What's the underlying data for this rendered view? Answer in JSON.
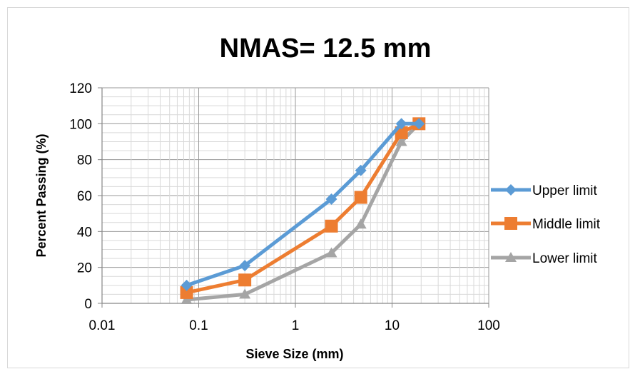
{
  "chart_data": {
    "type": "line",
    "title": "NMAS= 12.5 mm",
    "xlabel": "Sieve Size (mm)",
    "ylabel": "Percent Passing (%)",
    "x_scale": "log",
    "xlim": [
      0.01,
      100
    ],
    "ylim": [
      0,
      120
    ],
    "x_ticks": [
      "0.01",
      "0.1",
      "1",
      "10",
      "100"
    ],
    "y_ticks": [
      "0",
      "20",
      "40",
      "60",
      "80",
      "100",
      "120"
    ],
    "grid": true,
    "legend_position": "right",
    "x": [
      0.075,
      0.3,
      2.36,
      4.75,
      12.5,
      19
    ],
    "series": [
      {
        "name": "Upper limit",
        "values": [
          10,
          21,
          58,
          74,
          100,
          100
        ],
        "color": "#5B9BD5",
        "marker": "diamond"
      },
      {
        "name": "Middle limit",
        "values": [
          6,
          13,
          43,
          59,
          95,
          100
        ],
        "color": "#ED7D31",
        "marker": "square"
      },
      {
        "name": "Lower limit",
        "values": [
          2,
          5,
          28,
          44,
          90,
          100
        ],
        "color": "#A5A5A5",
        "marker": "triangle"
      }
    ]
  }
}
